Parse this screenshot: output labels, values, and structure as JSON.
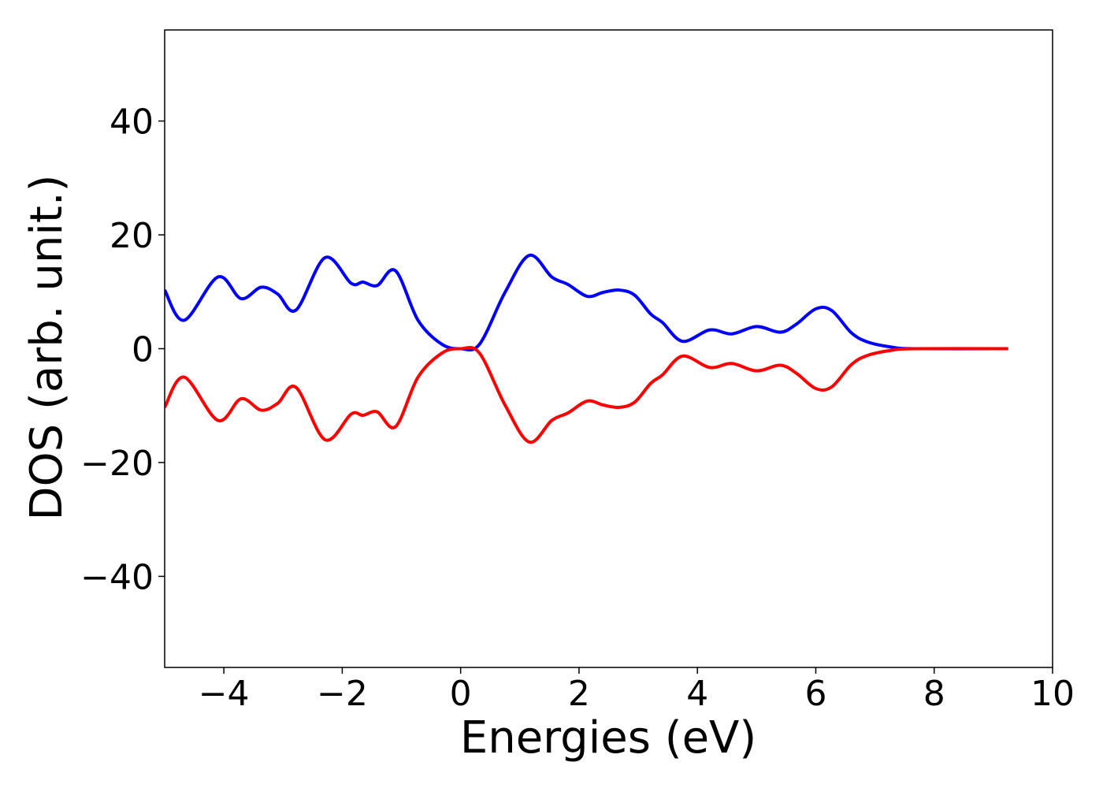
{
  "chart_data": {
    "type": "line",
    "xlabel": "Energies (eV)",
    "ylabel": "DOS (arb. unit.)",
    "x": [
      -5,
      -4.67,
      -4.1,
      -3.71,
      -3.37,
      -3.09,
      -2.78,
      -2.29,
      -1.85,
      -1.65,
      -1.41,
      -1.1,
      -0.72,
      -0.32,
      0,
      0.32,
      0.75,
      1.16,
      1.54,
      1.81,
      2.14,
      2.41,
      2.68,
      2.94,
      3.21,
      3.41,
      3.75,
      4.21,
      4.58,
      5.0,
      5.4,
      5.67,
      6.0,
      6.27,
      6.6,
      6.87,
      7.27,
      7.67,
      9.25
    ],
    "series": [
      {
        "color": "#0000ff",
        "values": [
          10.3,
          5,
          12.6,
          8.8,
          10.8,
          9.6,
          6.8,
          16.0,
          11.5,
          11.7,
          11.1,
          13.7,
          5,
          0.8,
          0,
          0.8,
          9.9,
          16.4,
          12.6,
          11.3,
          9.2,
          9.9,
          10.3,
          9.4,
          6.1,
          4.6,
          1.3,
          3.3,
          2.6,
          3.9,
          2.9,
          4.3,
          7.0,
          6.7,
          2.8,
          1.2,
          0.3,
          0,
          0
        ]
      },
      {
        "color": "#ff0000",
        "values": [
          -10.3,
          -5,
          -12.6,
          -8.8,
          -10.8,
          -9.6,
          -6.8,
          -16.0,
          -11.5,
          -11.7,
          -11.1,
          -13.7,
          -5,
          -0.8,
          0,
          -0.8,
          -9.9,
          -16.4,
          -12.6,
          -11.3,
          -9.2,
          -9.9,
          -10.3,
          -9.4,
          -6.1,
          -4.6,
          -1.3,
          -3.3,
          -2.6,
          -3.9,
          -2.9,
          -4.3,
          -7.0,
          -6.7,
          -2.8,
          -1.2,
          -0.3,
          0,
          0
        ]
      }
    ],
    "xlim": [
      -5,
      10
    ],
    "ylim": [
      -56,
      56
    ],
    "xticks": [
      {
        "value": -4,
        "label": "−4"
      },
      {
        "value": -2,
        "label": "−2"
      },
      0,
      2,
      4,
      6,
      8,
      10
    ],
    "yticks": [
      {
        "value": -40,
        "label": "−40"
      },
      {
        "value": -20,
        "label": "−20"
      },
      0,
      20,
      40
    ]
  }
}
